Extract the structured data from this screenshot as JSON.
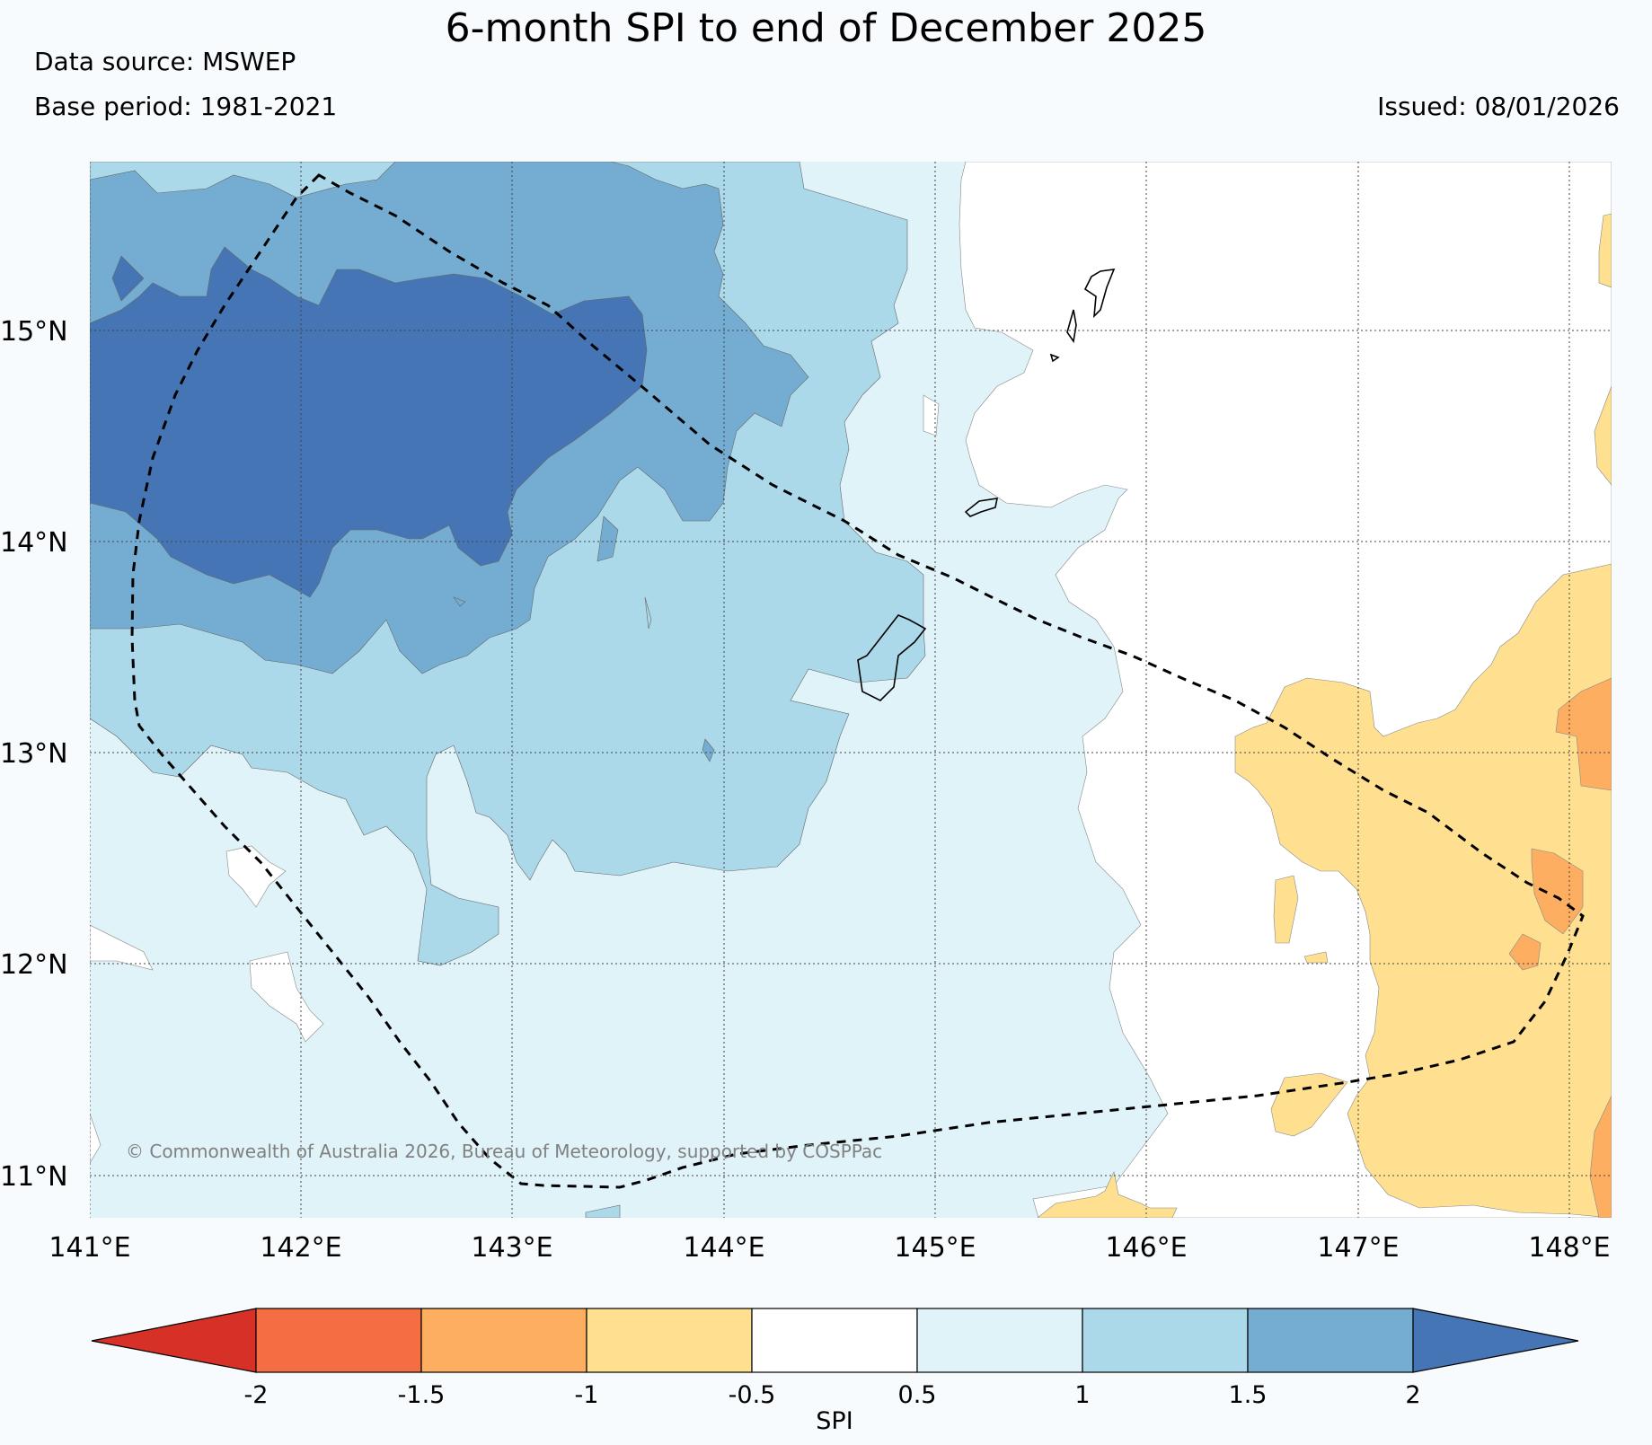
{
  "header": {
    "title": "6-month SPI to end of December 2025",
    "data_source": "Data source: MSWEP",
    "base_period": "Base period: 1981-2021",
    "issued": "Issued: 08/01/2026"
  },
  "map": {
    "lon_range": [
      141,
      148.2
    ],
    "lat_range": [
      10.8,
      15.8
    ],
    "lon_ticks": [
      {
        "value": 141,
        "label": "141°E"
      },
      {
        "value": 142,
        "label": "142°E"
      },
      {
        "value": 143,
        "label": "143°E"
      },
      {
        "value": 144,
        "label": "144°E"
      },
      {
        "value": 145,
        "label": "145°E"
      },
      {
        "value": 146,
        "label": "146°E"
      },
      {
        "value": 147,
        "label": "147°E"
      },
      {
        "value": 148,
        "label": "148°E"
      }
    ],
    "lat_ticks": [
      {
        "value": 15,
        "label": "15°N"
      },
      {
        "value": 14,
        "label": "14°N"
      },
      {
        "value": 13,
        "label": "13°N"
      },
      {
        "value": 12,
        "label": "12°N"
      },
      {
        "value": 11,
        "label": "11°N"
      }
    ],
    "copyright": "© Commonwealth of Australia 2026, Bureau of Meteorology, supported by COSPPac",
    "colors": {
      "below_neg2": "#d73027",
      "neg2_neg1_5": "#f46d43",
      "neg1_5_neg1": "#fdae61",
      "neg1_neg0_5": "#fee090",
      "neg0_5_0_5": "#ffffff",
      "0_5_1": "#e0f3f8",
      "1_1_5": "#abd9e9",
      "1_5_2": "#74add1",
      "above_2": "#4575b4"
    }
  },
  "colorbar": {
    "label": "SPI",
    "ticks": [
      "-2",
      "-1.5",
      "-1",
      "-0.5",
      "0.5",
      "1",
      "1.5",
      "2"
    ]
  }
}
